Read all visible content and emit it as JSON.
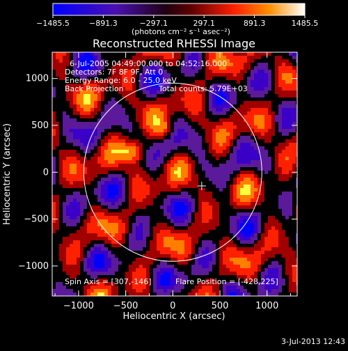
{
  "colorbar": {
    "ticks": [
      "−1485.5",
      "−891.3",
      "−297.1",
      "297.1",
      "891.3",
      "1485.5"
    ],
    "tick_values": [
      -1485.5,
      -891.3,
      -297.1,
      297.1,
      891.3,
      1485.5
    ],
    "range": [
      -1485.5,
      1485.5
    ],
    "units": "(photons cm⁻² s⁻¹ asec⁻²)"
  },
  "title": "Reconstructed RHESSI Image",
  "annotations": {
    "time": "6-Jul-2005 04:49:00.000 to 04:52:16.000",
    "detectors": "Detectors: 7F 8F 9F, Att 0",
    "energy": "Energy Range: 6.0 - 25.0 keV",
    "method": "Back Projection",
    "counts": "Total counts: 5.79E+03",
    "spin_axis": "Spin Axis = [307,-146]",
    "flare_position": "Flare Position = [-428,225]"
  },
  "axes": {
    "xlabel": "Heliocentric X (arcsec)",
    "ylabel": "Heliocentric Y (arcsec)",
    "xlim": [
      -1280,
      1320
    ],
    "ylim": [
      -1320,
      1280
    ],
    "xticks": [
      -1000,
      -500,
      0,
      500,
      1000
    ],
    "yticks": [
      -1000,
      -500,
      0,
      500,
      1000
    ],
    "xtick_labels": [
      "−1000",
      "−500",
      "0",
      "500",
      "1000"
    ],
    "ytick_labels": [
      "−1000",
      "−500",
      "0",
      "500",
      "1000"
    ]
  },
  "solar_limb": {
    "center": [
      0,
      0
    ],
    "radius_arcsec": 945
  },
  "marker": {
    "x": 307,
    "y": -146
  },
  "colormap": [
    "#0000ff",
    "#3b00c8",
    "#5a1a9a",
    "#000000",
    "#a00000",
    "#ff2000",
    "#ff8000",
    "#ffff40",
    "#ffffff"
  ],
  "footer": {
    "timestamp": "3-Jul-2013 12:43"
  }
}
